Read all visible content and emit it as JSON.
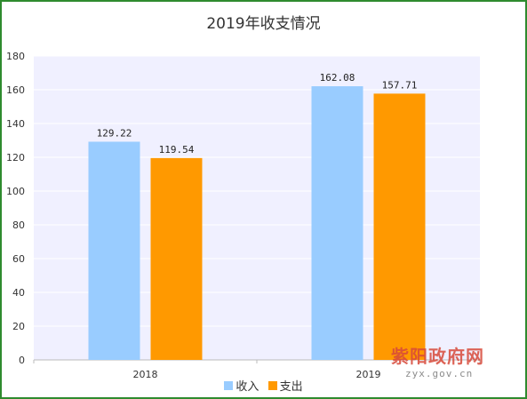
{
  "chart_data": {
    "type": "bar",
    "title": "2019年收支情况",
    "categories": [
      "2018",
      "2019"
    ],
    "series": [
      {
        "name": "收入",
        "values": [
          129.22,
          162.08
        ],
        "color": "#99ccff"
      },
      {
        "name": "支出",
        "values": [
          119.54,
          157.71
        ],
        "color": "#ff9900"
      }
    ],
    "ylim": [
      0,
      180
    ],
    "yticks": [
      0,
      20,
      40,
      60,
      80,
      100,
      120,
      140,
      160,
      180
    ],
    "data_labels": [
      "129.22",
      "162.08",
      "119.54",
      "157.71"
    ],
    "legend_position": "bottom",
    "grid": true,
    "plot_background": "#f0f0ff"
  },
  "watermark": {
    "name": "紫阳政府网",
    "url": "zyx.gov.cn"
  },
  "frame_color": "#2e8b2e"
}
